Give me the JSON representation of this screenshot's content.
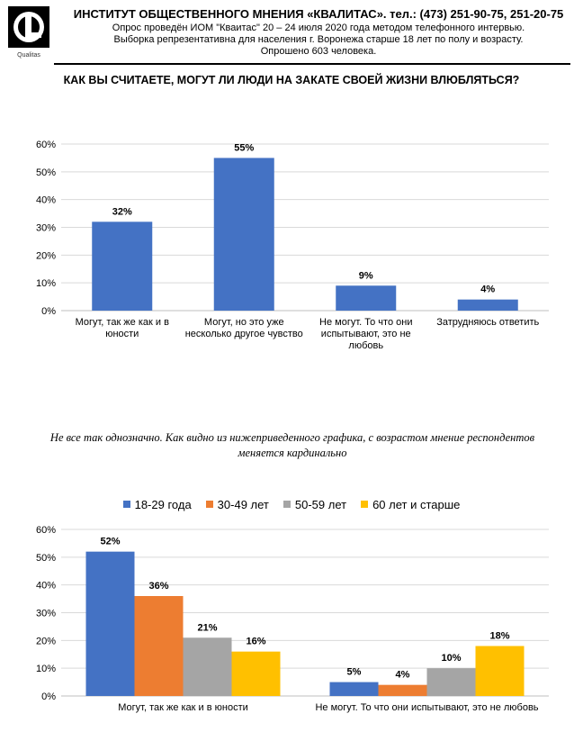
{
  "header": {
    "title": "ИНСТИТУТ ОБЩЕСТВЕННОГО МНЕНИЯ «КВАЛИТАС». тел.: (473) 251-90-75, 251-20-75",
    "line1": "Опрос проведён ИОМ \"Кваитас\" 20 – 24 июля 2020 года методом телефонного интервью.",
    "line2": "Выборка репрезентативна для населения г. Воронежа старше 18 лет по полу и возрасту.",
    "line3": "Опрошено 603 человека.",
    "logo_caption": "Qualitas"
  },
  "question": "КАК ВЫ СЧИТАЕТЕ, МОГУТ ЛИ ЛЮДИ НА ЗАКАТЕ СВОЕЙ ЖИЗНИ ВЛЮБЛЯТЬСЯ?",
  "note": "Не все так однозначно. Как видно из нижеприведенного графика, с возрастом мнение респондентов меняется кардинально",
  "colors": {
    "blue": "#4472C4",
    "orange": "#ED7D31",
    "gray": "#A5A5A5",
    "yellow": "#FFC000"
  },
  "chart_data": [
    {
      "type": "bar",
      "categories": [
        "Могут, так же как и в юности",
        "Могут, но это уже несколько другое чувство",
        "Не   могут. То что они испытывают, это не любовь",
        "Затрудняюсь ответить"
      ],
      "values": [
        32,
        55,
        9,
        4
      ],
      "data_labels": [
        "32%",
        "55%",
        "9%",
        "4%"
      ],
      "ylim": [
        0,
        60
      ],
      "yticks": [
        "0%",
        "10%",
        "20%",
        "30%",
        "40%",
        "50%",
        "60%"
      ],
      "grid": true
    },
    {
      "type": "bar",
      "categories": [
        "Могут, так же как и в юности",
        "Не   могут. То что они испытывают, это не любовь"
      ],
      "series": [
        {
          "name": "18-29 года",
          "values": [
            52,
            5
          ],
          "data_labels": [
            "52%",
            "5%"
          ],
          "color": "#4472C4"
        },
        {
          "name": "30-49 лет",
          "values": [
            36,
            4
          ],
          "data_labels": [
            "36%",
            "4%"
          ],
          "color": "#ED7D31"
        },
        {
          "name": "50-59 лет",
          "values": [
            21,
            10
          ],
          "data_labels": [
            "21%",
            "10%"
          ],
          "color": "#A5A5A5"
        },
        {
          "name": "60  лет и старше",
          "values": [
            16,
            18
          ],
          "data_labels": [
            "16%",
            "18%"
          ],
          "color": "#FFC000"
        }
      ],
      "ylim": [
        0,
        60
      ],
      "yticks": [
        "0%",
        "10%",
        "20%",
        "30%",
        "40%",
        "50%",
        "60%"
      ],
      "grid": true,
      "legend": "top"
    }
  ]
}
